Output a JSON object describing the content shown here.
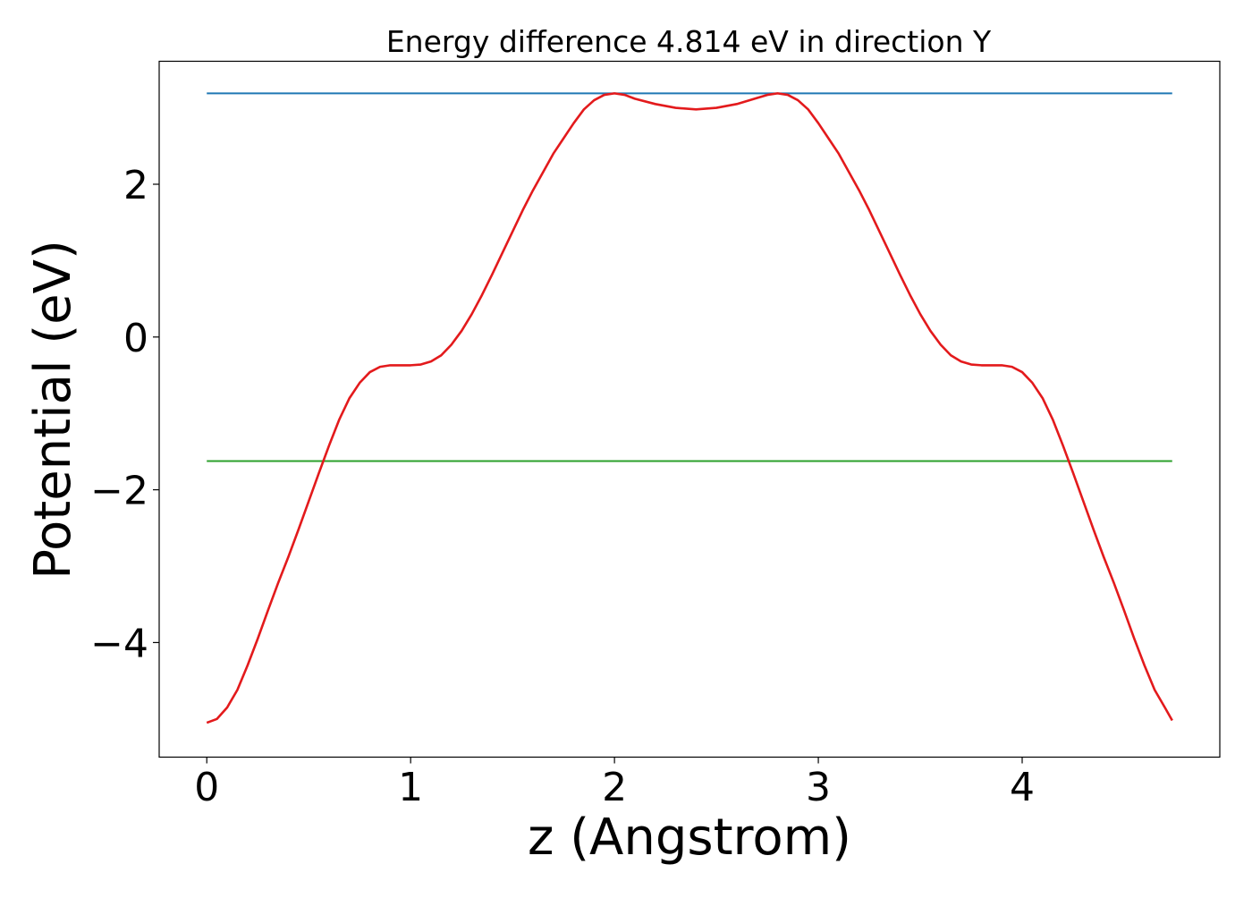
{
  "chart_data": {
    "type": "line",
    "title": "Energy difference 4.814 eV in direction Y",
    "xlabel": "z (Angstrom)",
    "ylabel": "Potential (eV)",
    "xlim": [
      -0.2335,
      4.9695
    ],
    "ylim": [
      -5.5,
      3.61
    ],
    "grid": false,
    "legend": "none",
    "x_ticks": [
      {
        "value": 0,
        "label": "0"
      },
      {
        "value": 1,
        "label": "1"
      },
      {
        "value": 2,
        "label": "2"
      },
      {
        "value": 3,
        "label": "3"
      },
      {
        "value": 4,
        "label": "4"
      }
    ],
    "y_ticks": [
      {
        "value": -4,
        "label": "−4"
      },
      {
        "value": -2,
        "label": "−2"
      },
      {
        "value": 0,
        "label": "0"
      },
      {
        "value": 2,
        "label": "2"
      }
    ],
    "series": [
      {
        "color": "#1f77b4",
        "x": [
          0,
          4.736
        ],
        "y": [
          3.19,
          3.19
        ]
      },
      {
        "color": "#2ca02c",
        "x": [
          0,
          4.736
        ],
        "y": [
          -1.624,
          -1.624
        ]
      },
      {
        "color": "#e31a1c",
        "x": [
          0.0,
          0.05,
          0.1,
          0.15,
          0.2,
          0.25,
          0.3,
          0.35,
          0.4,
          0.45,
          0.5,
          0.55,
          0.6,
          0.65,
          0.7,
          0.75,
          0.8,
          0.85,
          0.9,
          0.95,
          1.0,
          1.05,
          1.1,
          1.15,
          1.2,
          1.25,
          1.3,
          1.35,
          1.4,
          1.45,
          1.5,
          1.55,
          1.6,
          1.65,
          1.7,
          1.75,
          1.8,
          1.85,
          1.9,
          1.95,
          2.0,
          2.05,
          2.1,
          2.2,
          2.3,
          2.4,
          2.5,
          2.6,
          2.7,
          2.75,
          2.8,
          2.85,
          2.9,
          2.95,
          3.0,
          3.05,
          3.1,
          3.15,
          3.2,
          3.25,
          3.3,
          3.35,
          3.4,
          3.45,
          3.5,
          3.55,
          3.6,
          3.65,
          3.7,
          3.75,
          3.8,
          3.85,
          3.9,
          3.95,
          4.0,
          4.05,
          4.1,
          4.15,
          4.2,
          4.25,
          4.3,
          4.35,
          4.4,
          4.45,
          4.5,
          4.55,
          4.6,
          4.65,
          4.7,
          4.736
        ],
        "y": [
          -5.05,
          -5.0,
          -4.85,
          -4.62,
          -4.3,
          -3.95,
          -3.58,
          -3.22,
          -2.88,
          -2.52,
          -2.15,
          -1.78,
          -1.42,
          -1.08,
          -0.8,
          -0.6,
          -0.46,
          -0.39,
          -0.37,
          -0.37,
          -0.37,
          -0.36,
          -0.32,
          -0.24,
          -0.1,
          0.08,
          0.3,
          0.55,
          0.82,
          1.1,
          1.38,
          1.66,
          1.92,
          2.16,
          2.4,
          2.6,
          2.8,
          2.98,
          3.1,
          3.17,
          3.19,
          3.17,
          3.12,
          3.05,
          3.0,
          2.98,
          3.0,
          3.05,
          3.13,
          3.17,
          3.19,
          3.17,
          3.1,
          2.98,
          2.8,
          2.6,
          2.4,
          2.16,
          1.92,
          1.66,
          1.38,
          1.1,
          0.82,
          0.55,
          0.3,
          0.08,
          -0.1,
          -0.24,
          -0.32,
          -0.36,
          -0.37,
          -0.37,
          -0.37,
          -0.39,
          -0.46,
          -0.6,
          -0.8,
          -1.08,
          -1.42,
          -1.78,
          -2.15,
          -2.52,
          -2.88,
          -3.22,
          -3.58,
          -3.95,
          -4.3,
          -4.62,
          -4.85,
          -5.02
        ]
      }
    ]
  }
}
